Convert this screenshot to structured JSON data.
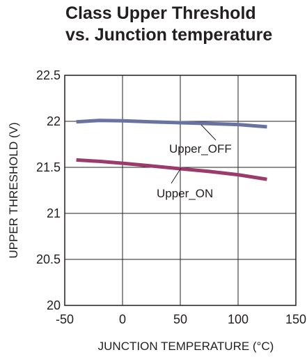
{
  "chart_data": {
    "type": "line",
    "title": [
      "Class Upper Threshold",
      "vs. Junction temperature"
    ],
    "xlabel": "JUNCTION TEMPERATURE (°C)",
    "ylabel": "UPPER THRESHOLD (V)",
    "xlim": [
      -50,
      150
    ],
    "ylim": [
      20,
      22.5
    ],
    "x_ticks": [
      -50,
      0,
      50,
      100,
      150
    ],
    "x_tick_labels": [
      "-50",
      "0",
      "50",
      "100",
      "150"
    ],
    "y_ticks": [
      20,
      20.5,
      21,
      21.5,
      22,
      22.5
    ],
    "y_tick_labels": [
      "20",
      "20.5",
      "21",
      "21.5",
      "22",
      "22.5"
    ],
    "grid": true,
    "series": [
      {
        "name": "Upper_OFF",
        "color": "#6873a1",
        "x": [
          -40,
          -20,
          0,
          25,
          50,
          75,
          100,
          125
        ],
        "y": [
          21.995,
          22.01,
          22.005,
          21.995,
          21.985,
          21.975,
          21.965,
          21.94
        ]
      },
      {
        "name": "Upper_ON",
        "color": "#9b3b6b",
        "x": [
          -40,
          -20,
          0,
          25,
          50,
          75,
          100,
          125
        ],
        "y": [
          21.58,
          21.565,
          21.545,
          21.515,
          21.485,
          21.455,
          21.42,
          21.37
        ]
      }
    ]
  }
}
